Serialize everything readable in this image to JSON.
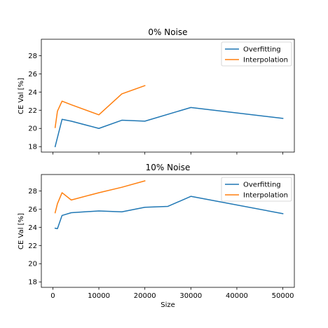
{
  "chart_data": [
    {
      "type": "line",
      "title": "0% Noise",
      "xlabel": "",
      "ylabel": "CE Val [%]",
      "xlim": [
        -2500,
        52500
      ],
      "ylim": [
        17.4,
        29.8
      ],
      "xticks": [
        0,
        10000,
        20000,
        30000,
        40000,
        50000
      ],
      "yticks": [
        18,
        20,
        22,
        24,
        26,
        28
      ],
      "show_x_tick_labels": false,
      "grid": false,
      "legend_position": "upper right",
      "series": [
        {
          "name": "Overfitting",
          "color": "#1f77b4",
          "x": [
            500,
            2000,
            4000,
            10000,
            15000,
            20000,
            30000,
            50000
          ],
          "y": [
            18.0,
            21.0,
            20.8,
            20.0,
            20.9,
            20.8,
            22.3,
            21.1
          ]
        },
        {
          "name": "Interpolation",
          "color": "#ff7f0e",
          "x": [
            500,
            1000,
            2000,
            4000,
            10000,
            15000,
            20000
          ],
          "y": [
            20.1,
            21.9,
            23.0,
            22.6,
            21.5,
            23.8,
            24.7
          ]
        }
      ]
    },
    {
      "type": "line",
      "title": "10% Noise",
      "xlabel": "Size",
      "ylabel": "CE Val [%]",
      "xlim": [
        -2500,
        52500
      ],
      "ylim": [
        17.4,
        29.8
      ],
      "xticks": [
        0,
        10000,
        20000,
        30000,
        40000,
        50000
      ],
      "xtick_labels": [
        "0",
        "10000",
        "20000",
        "30000",
        "40000",
        "50000"
      ],
      "yticks": [
        18,
        20,
        22,
        24,
        26,
        28
      ],
      "show_x_tick_labels": true,
      "grid": false,
      "legend_position": "upper right",
      "series": [
        {
          "name": "Overfitting",
          "color": "#1f77b4",
          "x": [
            500,
            1000,
            2000,
            4000,
            10000,
            15000,
            20000,
            25000,
            30000,
            50000
          ],
          "y": [
            23.9,
            23.85,
            25.3,
            25.6,
            25.8,
            25.7,
            26.2,
            26.3,
            27.4,
            25.5
          ]
        },
        {
          "name": "Interpolation",
          "color": "#ff7f0e",
          "x": [
            500,
            1000,
            2000,
            4000,
            10000,
            15000,
            20000
          ],
          "y": [
            25.6,
            26.6,
            27.8,
            27.0,
            27.8,
            28.4,
            29.1
          ]
        }
      ]
    }
  ]
}
